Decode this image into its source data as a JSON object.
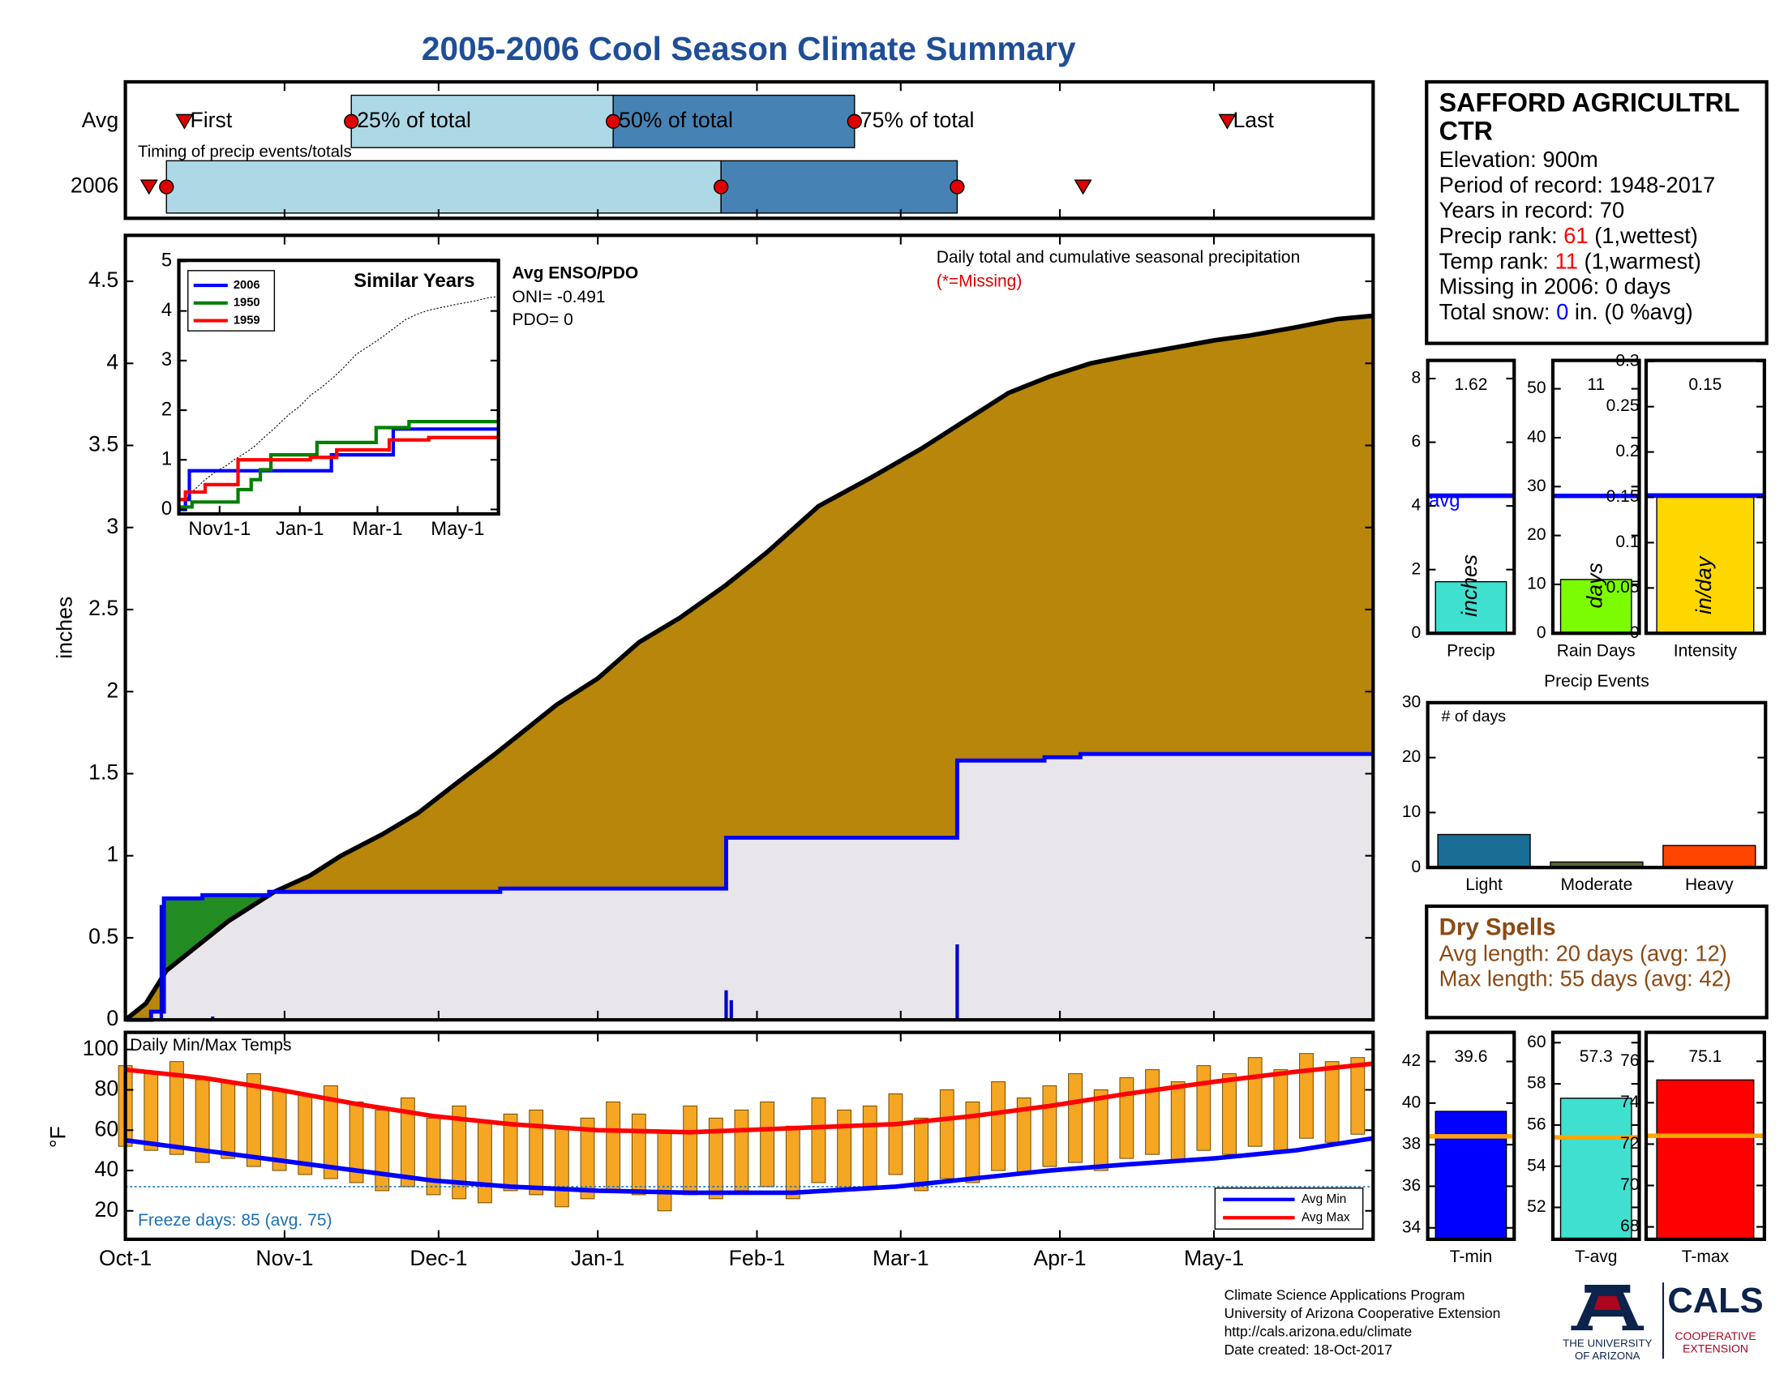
{
  "title": "2005-2006 Cool Season Climate Summary",
  "station_info": {
    "name_lines": [
      "SAFFORD AGRICULTRL",
      "CTR"
    ],
    "rows": [
      {
        "label": "Elevation:",
        "value": "900m"
      },
      {
        "label": "Period of record:",
        "value": "1948-2017"
      },
      {
        "label": "Years in record:",
        "value": 70
      },
      {
        "label": "Precip rank:",
        "value": 61,
        "color": "#ff0000",
        "note": "(1,wettest)"
      },
      {
        "label": "Temp rank:",
        "value": 11,
        "color": "#ff0000",
        "note": "(1,warmest)"
      },
      {
        "label": "Missing in 2006:",
        "value": "0 days"
      },
      {
        "label": "Total snow:",
        "value": 0,
        "color": "#0000ff",
        "note": "in. (0 %avg)"
      }
    ]
  },
  "dry_spells": {
    "title": "Dry Spells",
    "color": "#8b4a14",
    "lines": [
      "Avg length: 20 days (avg: 12)",
      "Max length: 55 days (avg: 42)"
    ]
  },
  "footer": {
    "lines": [
      "Climate Science Applications Program",
      "University of Arizona Cooperative Extension",
      "http://cals.arizona.edu/climate",
      "Date created: 18-Oct-2017"
    ],
    "university": [
      "THE UNIVERSITY",
      "OF ARIZONA"
    ],
    "cals": "CALS",
    "extension": [
      "COOPERATIVE",
      "EXTENSION"
    ]
  },
  "chart_data": [
    {
      "type": "timeline",
      "title": "Timing of precip events/totals",
      "categories": [
        "Avg",
        "2006"
      ],
      "xlim": [
        0,
        243
      ],
      "colors": [
        "#add8e6",
        "#4682b4"
      ],
      "series": [
        {
          "name": "First",
          "marker": "triangle",
          "color": "#e00000",
          "values": [
            11.5,
            4.6
          ]
        },
        {
          "name": "25% of total",
          "marker": "circle",
          "color": "#e00000",
          "values": [
            44,
            8
          ]
        },
        {
          "name": "50% of total",
          "marker": "circle",
          "color": "#e00000",
          "values": [
            95,
            116
          ]
        },
        {
          "name": "75% of total",
          "marker": "circle",
          "color": "#e00000",
          "values": [
            142,
            162
          ]
        },
        {
          "name": "Last",
          "marker": "triangle",
          "color": "#e00000",
          "values": [
            214.6,
            186.5
          ]
        }
      ]
    },
    {
      "type": "area",
      "ylabel": "inches",
      "annotations": [
        "Daily total and cumulative seasonal precipitation",
        "(*=Missing)"
      ],
      "annotation_colors": [
        "#000000",
        "#e00000"
      ],
      "enso": {
        "title": "Avg ENSO/PDO",
        "oni": "ONI= -0.491",
        "pdo": "PDO= 0"
      },
      "xlim": [
        0,
        243
      ],
      "ylim": [
        0,
        4.78
      ],
      "yticks": [
        0,
        0.5,
        1,
        1.5,
        2,
        2.5,
        3,
        3.5,
        4,
        4.5
      ],
      "series": [
        {
          "type": "area",
          "color": "#000000",
          "fill": "#b8860b",
          "x": [
            0,
            4,
            8,
            14,
            20,
            29,
            36,
            42,
            50,
            57,
            64,
            72,
            84,
            92,
            100,
            108,
            117,
            125,
            135,
            145,
            155,
            163,
            172,
            180,
            188,
            196,
            205,
            212,
            219,
            228,
            236,
            243
          ],
          "values": [
            0,
            0.1,
            0.3,
            0.45,
            0.6,
            0.78,
            0.88,
            1.0,
            1.13,
            1.26,
            1.43,
            1.62,
            1.92,
            2.08,
            2.3,
            2.45,
            2.65,
            2.85,
            3.13,
            3.3,
            3.48,
            3.64,
            3.82,
            3.92,
            4.0,
            4.05,
            4.1,
            4.14,
            4.17,
            4.22,
            4.27,
            4.29
          ]
        },
        {
          "type": "step",
          "color": "#0000ff",
          "fill": "#e8e6ea",
          "fill_above": "#228b22",
          "x": [
            0,
            5,
            7.5,
            15,
            28,
            73,
            117,
            162,
            179,
            186,
            243
          ],
          "values": [
            0,
            0.05,
            0.74,
            0.76,
            0.78,
            0.8,
            1.11,
            1.58,
            1.6,
            1.62,
            1.62
          ]
        },
        {
          "type": "bar",
          "color": "#0000cd",
          "x": [
            7,
            17,
            117,
            118,
            162
          ],
          "values": [
            0.7,
            0.02,
            0.18,
            0.12,
            0.46
          ]
        }
      ]
    },
    {
      "type": "line",
      "title": "Similar Years",
      "xlim": [
        0,
        243
      ],
      "xticks": [
        {
          "value": 31,
          "label": "Nov1-1"
        },
        {
          "value": 92,
          "label": "Jan-1"
        },
        {
          "value": 151,
          "label": "Mar-1"
        },
        {
          "value": 212,
          "label": "May-1"
        }
      ],
      "ylim": [
        -0.09,
        5.02
      ],
      "yticks": [
        0,
        1,
        2,
        3,
        4,
        5
      ],
      "series": [
        {
          "name": "2006",
          "color": "#0000ff",
          "x": [
            0,
            5,
            8,
            116,
            163,
            243
          ],
          "values": [
            0,
            0.2,
            0.78,
            1.1,
            1.62,
            1.62
          ]
        },
        {
          "name": "1950",
          "color": "#008000",
          "x": [
            0,
            10,
            45,
            55,
            62,
            70,
            105,
            150,
            175,
            243
          ],
          "values": [
            0.05,
            0.15,
            0.4,
            0.6,
            0.8,
            1.1,
            1.35,
            1.65,
            1.77,
            1.77
          ]
        },
        {
          "name": "1959",
          "color": "#ff0000",
          "x": [
            0,
            5,
            20,
            45,
            100,
            120,
            160,
            190,
            243
          ],
          "values": [
            0.2,
            0.35,
            0.5,
            1.0,
            1.05,
            1.2,
            1.4,
            1.45,
            1.5
          ]
        }
      ]
    },
    {
      "type": "bar",
      "xlabel": "Precip",
      "ylabel": "inches",
      "values": [
        1.62
      ],
      "color": "#40e0d0",
      "avg": 4.32,
      "avg_label": "avg",
      "avg_color": "#0000ff",
      "ylim": [
        0,
        8.57
      ],
      "yticks": [
        0,
        2,
        4,
        6,
        8
      ]
    },
    {
      "type": "bar",
      "xlabel": "Rain Days",
      "ylabel": "days",
      "values": [
        11
      ],
      "color": "#7cfc00",
      "avg": 28.1,
      "avg_color": "#0000ff",
      "ylim": [
        0,
        55.8
      ],
      "yticks": [
        0,
        10,
        20,
        30,
        40,
        50
      ]
    },
    {
      "type": "bar",
      "xlabel": "Intensity",
      "ylabel": "in/day",
      "values": [
        0.15
      ],
      "color": "#ffd700",
      "avg": 0.152,
      "avg_color": "#0000ff",
      "ylim": [
        0,
        0.301
      ],
      "yticks": [
        0,
        0.05,
        0.1,
        0.15,
        0.2,
        0.25,
        0.3
      ]
    },
    {
      "type": "bar",
      "title": "Precip Events",
      "ylabel": "# of days",
      "categories": [
        "Light",
        "Moderate",
        "Heavy"
      ],
      "values": [
        6,
        1,
        4
      ],
      "colors": [
        "#1a6e96",
        "#556b2f",
        "#ff4500"
      ],
      "ylim": [
        0,
        30
      ],
      "yticks": [
        0,
        10,
        20,
        30
      ]
    },
    {
      "type": "range",
      "title": "Daily Min/Max Temps",
      "note": "Freeze days: 85 (avg. 75)",
      "note_color": "#1e6fb4",
      "ylabel": "°F",
      "freeze_threshold": 32,
      "xlim": [
        0,
        243
      ],
      "xticks": [
        {
          "value": 0,
          "label": "Oct-1"
        },
        {
          "value": 31,
          "label": "Nov-1"
        },
        {
          "value": 61,
          "label": "Dec-1"
        },
        {
          "value": 92,
          "label": "Jan-1"
        },
        {
          "value": 123,
          "label": "Feb-1"
        },
        {
          "value": 151,
          "label": "Mar-1"
        },
        {
          "value": 182,
          "label": "Apr-1"
        },
        {
          "value": 212,
          "label": "May-1"
        }
      ],
      "ylim": [
        5.9,
        108.5
      ],
      "yticks": [
        20,
        40,
        60,
        80,
        100
      ],
      "daily": {
        "color": "#f5a623",
        "x": [
          0,
          5,
          10,
          15,
          20,
          25,
          30,
          35,
          40,
          45,
          50,
          55,
          60,
          65,
          70,
          75,
          80,
          85,
          90,
          95,
          100,
          105,
          110,
          115,
          120,
          125,
          130,
          135,
          140,
          145,
          150,
          155,
          160,
          165,
          170,
          175,
          180,
          185,
          190,
          195,
          200,
          205,
          210,
          215,
          220,
          225,
          230,
          235,
          240
        ],
        "max": [
          92,
          88,
          94,
          85,
          84,
          88,
          80,
          78,
          82,
          74,
          70,
          76,
          66,
          72,
          64,
          68,
          70,
          62,
          66,
          74,
          68,
          60,
          72,
          66,
          70,
          74,
          62,
          76,
          70,
          72,
          78,
          66,
          80,
          74,
          84,
          76,
          82,
          88,
          80,
          86,
          90,
          84,
          92,
          88,
          96,
          90,
          98,
          94,
          96
        ],
        "min": [
          52,
          50,
          48,
          44,
          46,
          42,
          40,
          38,
          36,
          34,
          30,
          32,
          28,
          26,
          24,
          30,
          28,
          22,
          26,
          30,
          28,
          20,
          28,
          26,
          30,
          32,
          26,
          34,
          30,
          32,
          38,
          30,
          36,
          34,
          40,
          38,
          42,
          44,
          40,
          46,
          48,
          44,
          50,
          48,
          52,
          50,
          56,
          54,
          58
        ]
      },
      "series": [
        {
          "name": "Avg Min",
          "color": "#0000ff",
          "x": [
            0,
            15,
            30,
            45,
            60,
            75,
            92,
            110,
            130,
            150,
            165,
            180,
            195,
            212,
            228,
            243
          ],
          "values": [
            55,
            50,
            45,
            40,
            35,
            32,
            30,
            29,
            29,
            32,
            36,
            40,
            43,
            46,
            50,
            56
          ]
        },
        {
          "name": "Avg Max",
          "color": "#ff0000",
          "x": [
            0,
            15,
            30,
            45,
            60,
            75,
            92,
            110,
            130,
            150,
            165,
            180,
            195,
            212,
            228,
            243
          ],
          "values": [
            90,
            86,
            80,
            73,
            67,
            63,
            60,
            59,
            61,
            63,
            67,
            72,
            78,
            84,
            89,
            93
          ]
        }
      ]
    },
    {
      "type": "bar",
      "xlabel": "T-min",
      "values": [
        39.6
      ],
      "color": "#0000ff",
      "avg": 38.4,
      "avg_color": "#ffa500",
      "ylim": [
        33.45,
        43.4
      ],
      "yticks": [
        34,
        36,
        38,
        40,
        42
      ]
    },
    {
      "type": "bar",
      "xlabel": "T-avg",
      "values": [
        57.3
      ],
      "color": "#40e0d0",
      "avg": 55.4,
      "avg_color": "#ffa500",
      "ylim": [
        50.45,
        60.5
      ],
      "yticks": [
        52,
        54,
        56,
        58,
        60
      ]
    },
    {
      "type": "bar",
      "xlabel": "T-max",
      "values": [
        75.1
      ],
      "color": "#ff0000",
      "avg": 72.4,
      "avg_color": "#ffa500",
      "ylim": [
        67.4,
        77.4
      ],
      "yticks": [
        68,
        70,
        72,
        74,
        76
      ]
    }
  ]
}
